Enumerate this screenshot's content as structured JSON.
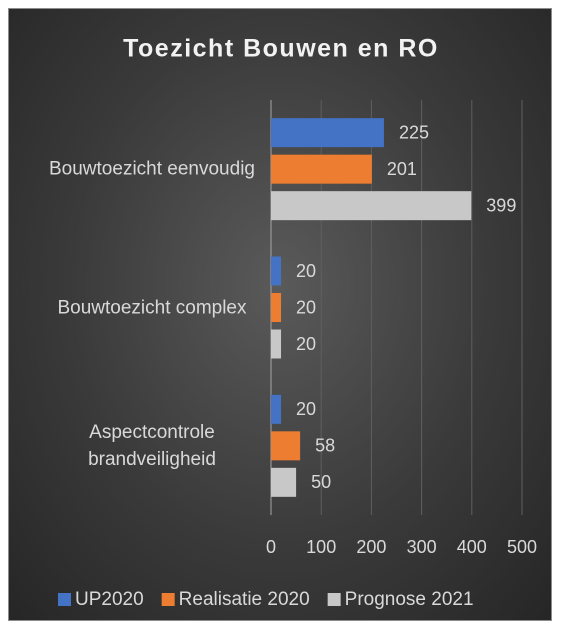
{
  "chart_data": {
    "type": "barh",
    "title": "Toezicht Bouwen en RO",
    "categories": [
      "Bouwtoezicht eenvoudig",
      "Bouwtoezicht complex",
      "Aspectcontrole brandveiligheid"
    ],
    "series": [
      {
        "name": "UP2020",
        "color": "#4472c4",
        "values": [
          225,
          20,
          20
        ]
      },
      {
        "name": "Realisatie 2020",
        "color": "#ed7d31",
        "values": [
          201,
          20,
          58
        ]
      },
      {
        "name": "Prognose 2021",
        "color": "#c8c8c8",
        "values": [
          399,
          20,
          50
        ]
      }
    ],
    "xlim": [
      0,
      500
    ],
    "xticks": [
      0,
      100,
      200,
      300,
      400,
      500
    ],
    "grid": true,
    "legend": "bottom"
  }
}
